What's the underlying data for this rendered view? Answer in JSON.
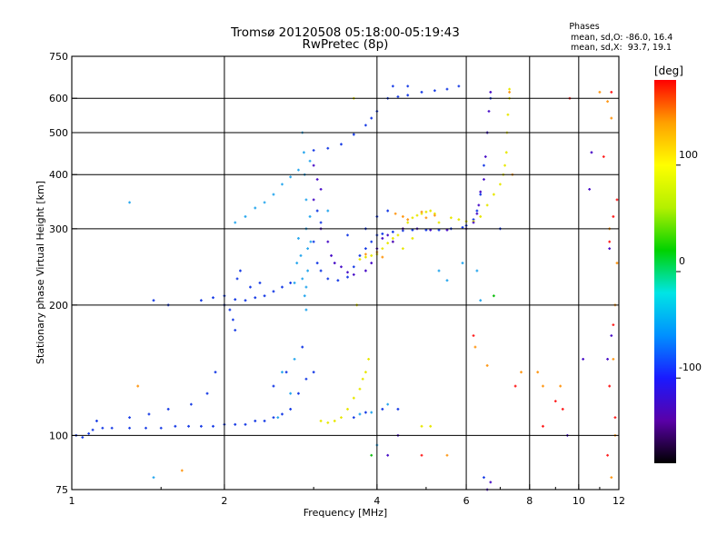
{
  "chart_data": {
    "type": "scatter",
    "title_line1": "Tromsø 20120508 05:18:00-05:19:43",
    "title_line2": "RwPretec (8p)",
    "phases": {
      "title": "Phases",
      "line1": "mean, sd,O: -86.0, 16.4",
      "line2": "mean, sd,X:  93.7, 19.1"
    },
    "xlabel": "Frequency [MHz]",
    "ylabel": "Stationary phase Virtual Height [km]",
    "x_scale": "log",
    "y_scale": "log",
    "xlim": [
      1,
      12
    ],
    "ylim": [
      75,
      750
    ],
    "x_ticks": [
      1,
      2,
      4,
      6,
      8,
      10,
      12
    ],
    "y_ticks": [
      75,
      100,
      200,
      300,
      400,
      500,
      600,
      750
    ],
    "x_gridlines": [
      2,
      4,
      6,
      8,
      10
    ],
    "y_gridlines": [
      100,
      200,
      300,
      400,
      500,
      600
    ],
    "colorbar": {
      "label": "[deg]",
      "ticks": [
        100,
        0,
        -100
      ],
      "range": [
        -180,
        180
      ],
      "colors": [
        "#000000",
        "#5a00a8",
        "#1a1aff",
        "#0090ff",
        "#00e5e5",
        "#00d200",
        "#b4f000",
        "#ffff00",
        "#ffa000",
        "#ff0000"
      ]
    },
    "series": [
      {
        "color": "#1a3ee6",
        "points": [
          [
            1.02,
            100
          ],
          [
            1.05,
            99
          ],
          [
            1.08,
            101
          ],
          [
            1.1,
            103
          ],
          [
            1.15,
            104
          ],
          [
            1.2,
            104
          ],
          [
            1.3,
            104
          ],
          [
            1.4,
            104
          ],
          [
            1.5,
            104
          ],
          [
            1.6,
            105
          ],
          [
            1.7,
            105
          ],
          [
            1.8,
            105
          ],
          [
            1.9,
            105
          ],
          [
            2.0,
            106
          ],
          [
            2.1,
            106
          ],
          [
            2.2,
            106
          ],
          [
            2.3,
            108
          ],
          [
            2.4,
            108
          ],
          [
            2.5,
            110
          ],
          [
            2.6,
            112
          ],
          [
            2.7,
            115
          ],
          [
            2.8,
            125
          ],
          [
            2.9,
            135
          ],
          [
            1.12,
            108
          ],
          [
            1.3,
            110
          ],
          [
            1.42,
            112
          ],
          [
            1.55,
            115
          ],
          [
            1.72,
            118
          ],
          [
            1.85,
            125
          ],
          [
            1.92,
            140
          ],
          [
            2.65,
            140
          ],
          [
            2.85,
            160
          ],
          [
            3.0,
            140
          ],
          [
            2.5,
            130
          ],
          [
            1.8,
            205
          ],
          [
            1.9,
            208
          ],
          [
            2.0,
            210
          ],
          [
            2.1,
            206
          ],
          [
            2.2,
            205
          ],
          [
            2.3,
            208
          ],
          [
            2.4,
            210
          ],
          [
            2.5,
            215
          ],
          [
            2.6,
            220
          ],
          [
            2.7,
            225
          ],
          [
            2.0,
            200
          ],
          [
            2.05,
            195
          ],
          [
            2.08,
            185
          ],
          [
            2.1,
            175
          ],
          [
            2.12,
            230
          ],
          [
            2.15,
            240
          ],
          [
            2.25,
            220
          ],
          [
            2.35,
            225
          ],
          [
            3.05,
            330
          ],
          [
            3.1,
            310
          ],
          [
            3.0,
            280
          ],
          [
            3.05,
            250
          ],
          [
            3.1,
            240
          ],
          [
            3.2,
            230
          ],
          [
            3.35,
            228
          ],
          [
            3.5,
            232
          ],
          [
            3.6,
            245
          ],
          [
            3.7,
            260
          ],
          [
            3.8,
            270
          ],
          [
            3.9,
            280
          ],
          [
            4.0,
            290
          ],
          [
            4.1,
            292
          ],
          [
            4.3,
            295
          ],
          [
            4.5,
            297
          ],
          [
            4.7,
            298
          ],
          [
            5.0,
            298
          ],
          [
            5.3,
            298
          ],
          [
            5.6,
            300
          ],
          [
            5.9,
            302
          ],
          [
            6.0,
            305
          ],
          [
            6.2,
            315
          ],
          [
            6.3,
            330
          ],
          [
            6.4,
            360
          ],
          [
            6.5,
            420
          ],
          [
            6.6,
            500
          ],
          [
            6.7,
            600
          ],
          [
            4.0,
            320
          ],
          [
            3.8,
            300
          ],
          [
            4.2,
            330
          ],
          [
            3.5,
            290
          ],
          [
            3.0,
            455
          ],
          [
            3.2,
            460
          ],
          [
            3.4,
            470
          ],
          [
            3.6,
            495
          ],
          [
            3.8,
            520
          ],
          [
            3.9,
            540
          ],
          [
            4.0,
            560
          ],
          [
            4.2,
            600
          ],
          [
            4.4,
            605
          ],
          [
            4.6,
            610
          ],
          [
            4.9,
            620
          ],
          [
            5.2,
            625
          ],
          [
            5.5,
            630
          ],
          [
            5.8,
            640
          ],
          [
            4.3,
            640
          ],
          [
            4.6,
            640
          ],
          [
            1.45,
            205
          ],
          [
            1.55,
            200
          ],
          [
            3.8,
            113
          ],
          [
            3.6,
            110
          ],
          [
            4.1,
            115
          ],
          [
            4.4,
            115
          ],
          [
            6.5,
            80
          ],
          [
            7.0,
            300
          ]
        ]
      },
      {
        "color": "#2aa8ee",
        "points": [
          [
            2.85,
            500
          ],
          [
            2.87,
            450
          ],
          [
            2.88,
            400
          ],
          [
            2.9,
            350
          ],
          [
            2.9,
            300
          ],
          [
            2.92,
            270
          ],
          [
            2.92,
            240
          ],
          [
            2.9,
            220
          ],
          [
            2.85,
            230
          ],
          [
            2.83,
            260
          ],
          [
            2.8,
            285
          ],
          [
            2.78,
            250
          ],
          [
            2.75,
            225
          ],
          [
            2.88,
            210
          ],
          [
            2.9,
            195
          ],
          [
            2.95,
            320
          ],
          [
            2.96,
            280
          ],
          [
            2.3,
            335
          ],
          [
            2.4,
            345
          ],
          [
            2.5,
            360
          ],
          [
            2.6,
            380
          ],
          [
            2.7,
            395
          ],
          [
            2.8,
            410
          ],
          [
            2.95,
            430
          ],
          [
            2.2,
            320
          ],
          [
            2.1,
            310
          ],
          [
            2.75,
            150
          ],
          [
            2.7,
            125
          ],
          [
            2.6,
            140
          ],
          [
            2.55,
            110
          ],
          [
            3.7,
            112
          ],
          [
            3.9,
            113
          ],
          [
            4.2,
            118
          ],
          [
            5.3,
            240
          ],
          [
            5.5,
            228
          ],
          [
            5.9,
            250
          ],
          [
            6.3,
            240
          ],
          [
            1.3,
            345
          ],
          [
            1.45,
            80
          ],
          [
            3.2,
            330
          ],
          [
            4.0,
            95
          ],
          [
            6.4,
            205
          ]
        ]
      },
      {
        "color": "#e8e800",
        "points": [
          [
            3.1,
            108
          ],
          [
            3.2,
            107
          ],
          [
            3.3,
            108
          ],
          [
            3.4,
            110
          ],
          [
            3.5,
            115
          ],
          [
            3.6,
            122
          ],
          [
            3.7,
            128
          ],
          [
            3.75,
            135
          ],
          [
            3.8,
            140
          ],
          [
            3.85,
            150
          ],
          [
            3.65,
            200
          ],
          [
            3.7,
            255
          ],
          [
            3.8,
            258
          ],
          [
            3.9,
            260
          ],
          [
            4.0,
            262
          ],
          [
            4.1,
            270
          ],
          [
            4.2,
            278
          ],
          [
            4.3,
            285
          ],
          [
            4.4,
            290
          ],
          [
            4.5,
            300
          ],
          [
            4.6,
            310
          ],
          [
            4.7,
            318
          ],
          [
            4.8,
            322
          ],
          [
            4.9,
            325
          ],
          [
            5.0,
            328
          ],
          [
            5.1,
            330
          ],
          [
            5.2,
            325
          ],
          [
            5.6,
            318
          ],
          [
            5.8,
            315
          ],
          [
            6.0,
            312
          ],
          [
            6.2,
            312
          ],
          [
            6.4,
            320
          ],
          [
            6.6,
            340
          ],
          [
            6.8,
            360
          ],
          [
            7.0,
            380
          ],
          [
            7.1,
            400
          ],
          [
            7.15,
            420
          ],
          [
            7.2,
            450
          ],
          [
            7.22,
            500
          ],
          [
            7.25,
            550
          ],
          [
            7.3,
            600
          ],
          [
            7.3,
            630
          ],
          [
            4.9,
            105
          ],
          [
            5.1,
            105
          ],
          [
            3.6,
            600
          ],
          [
            4.5,
            270
          ],
          [
            4.7,
            285
          ],
          [
            5.3,
            310
          ]
        ]
      },
      {
        "color": "#ff9a1a",
        "points": [
          [
            3.8,
            262
          ],
          [
            4.0,
            265
          ],
          [
            4.1,
            258
          ],
          [
            4.3,
            280
          ],
          [
            4.6,
            315
          ],
          [
            4.9,
            328
          ],
          [
            5.0,
            318
          ],
          [
            5.2,
            322
          ],
          [
            4.35,
            325
          ],
          [
            4.5,
            320
          ],
          [
            1.35,
            130
          ],
          [
            6.25,
            160
          ],
          [
            6.6,
            145
          ],
          [
            7.7,
            140
          ],
          [
            8.3,
            140
          ],
          [
            8.5,
            130
          ],
          [
            9.2,
            130
          ],
          [
            11.0,
            620
          ],
          [
            11.4,
            590
          ],
          [
            11.6,
            540
          ],
          [
            11.5,
            300
          ],
          [
            11.7,
            150
          ],
          [
            11.8,
            200
          ],
          [
            11.9,
            250
          ],
          [
            11.8,
            100
          ],
          [
            11.6,
            80
          ],
          [
            7.3,
            620
          ],
          [
            7.4,
            400
          ],
          [
            5.5,
            90
          ],
          [
            1.65,
            83
          ]
        ]
      },
      {
        "color": "#ff2020",
        "points": [
          [
            9.0,
            120
          ],
          [
            9.3,
            115
          ],
          [
            9.6,
            600
          ],
          [
            11.2,
            440
          ],
          [
            11.5,
            130
          ],
          [
            11.7,
            180
          ],
          [
            11.8,
            110
          ],
          [
            11.6,
            620
          ],
          [
            11.9,
            350
          ],
          [
            11.7,
            320
          ],
          [
            11.5,
            280
          ],
          [
            11.4,
            90
          ],
          [
            6.2,
            170
          ],
          [
            8.5,
            105
          ],
          [
            7.5,
            130
          ],
          [
            4.9,
            90
          ]
        ]
      },
      {
        "color": "#4a10c8",
        "points": [
          [
            3.0,
            420
          ],
          [
            3.05,
            390
          ],
          [
            3.1,
            370
          ],
          [
            3.0,
            350
          ],
          [
            3.1,
            300
          ],
          [
            3.2,
            280
          ],
          [
            3.25,
            260
          ],
          [
            3.3,
            250
          ],
          [
            3.4,
            245
          ],
          [
            3.5,
            238
          ],
          [
            3.6,
            235
          ],
          [
            3.8,
            240
          ],
          [
            3.9,
            250
          ],
          [
            4.0,
            270
          ],
          [
            4.1,
            285
          ],
          [
            4.2,
            290
          ],
          [
            4.3,
            280
          ],
          [
            4.5,
            300
          ],
          [
            4.8,
            300
          ],
          [
            5.1,
            298
          ],
          [
            5.5,
            298
          ],
          [
            6.0,
            300
          ],
          [
            6.2,
            310
          ],
          [
            6.3,
            325
          ],
          [
            6.35,
            340
          ],
          [
            6.4,
            365
          ],
          [
            6.5,
            390
          ],
          [
            6.55,
            440
          ],
          [
            6.6,
            500
          ],
          [
            6.65,
            560
          ],
          [
            6.7,
            620
          ],
          [
            4.2,
            90
          ],
          [
            4.4,
            100
          ],
          [
            11.4,
            150
          ],
          [
            11.5,
            270
          ],
          [
            11.6,
            170
          ],
          [
            10.2,
            150
          ],
          [
            10.5,
            370
          ],
          [
            10.6,
            450
          ],
          [
            9.5,
            100
          ],
          [
            6.6,
            75
          ],
          [
            6.7,
            78
          ]
        ]
      },
      {
        "color": "#16c016",
        "points": [
          [
            3.9,
            90
          ],
          [
            6.8,
            210
          ]
        ]
      }
    ]
  }
}
